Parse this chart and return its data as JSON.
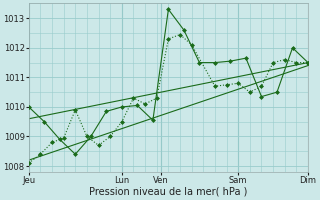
{
  "bg_color": "#cce8e8",
  "grid_color": "#99cccc",
  "line_color": "#1a6b1a",
  "xlabel": "Pression niveau de la mer( hPa )",
  "ylim": [
    1007.8,
    1013.5
  ],
  "yticks": [
    1008,
    1009,
    1010,
    1011,
    1012,
    1013
  ],
  "xtick_labels": [
    "Jeu",
    "Lun",
    "Ven",
    "Sam",
    "Dim"
  ],
  "xtick_positions": [
    0,
    24,
    34,
    54,
    72
  ],
  "series_dot_x": [
    0,
    3,
    6,
    9,
    12,
    15,
    18,
    21,
    24,
    27,
    30,
    33,
    36,
    39,
    42,
    48,
    51,
    54,
    57,
    60,
    63,
    66,
    69,
    72
  ],
  "series_dot_y": [
    1008.1,
    1008.4,
    1008.8,
    1008.95,
    1009.9,
    1009.0,
    1008.7,
    1009.0,
    1009.5,
    1010.3,
    1010.1,
    1010.3,
    1012.3,
    1012.45,
    1012.1,
    1010.7,
    1010.75,
    1010.8,
    1010.5,
    1010.7,
    1011.5,
    1011.6,
    1011.5,
    1011.5
  ],
  "series_solid_x": [
    0,
    4,
    8,
    12,
    16,
    20,
    24,
    28,
    32,
    36,
    40,
    44,
    48,
    52,
    56,
    60,
    64,
    68,
    72
  ],
  "series_solid_y": [
    1010.0,
    1009.5,
    1008.9,
    1008.4,
    1009.0,
    1009.85,
    1010.0,
    1010.05,
    1009.55,
    1013.3,
    1012.6,
    1011.5,
    1011.5,
    1011.55,
    1011.65,
    1010.35,
    1010.5,
    1012.0,
    1011.5
  ],
  "trend1_x": [
    0,
    72
  ],
  "trend1_y": [
    1009.6,
    1011.5
  ],
  "trend2_x": [
    0,
    72
  ],
  "trend2_y": [
    1008.2,
    1011.4
  ]
}
